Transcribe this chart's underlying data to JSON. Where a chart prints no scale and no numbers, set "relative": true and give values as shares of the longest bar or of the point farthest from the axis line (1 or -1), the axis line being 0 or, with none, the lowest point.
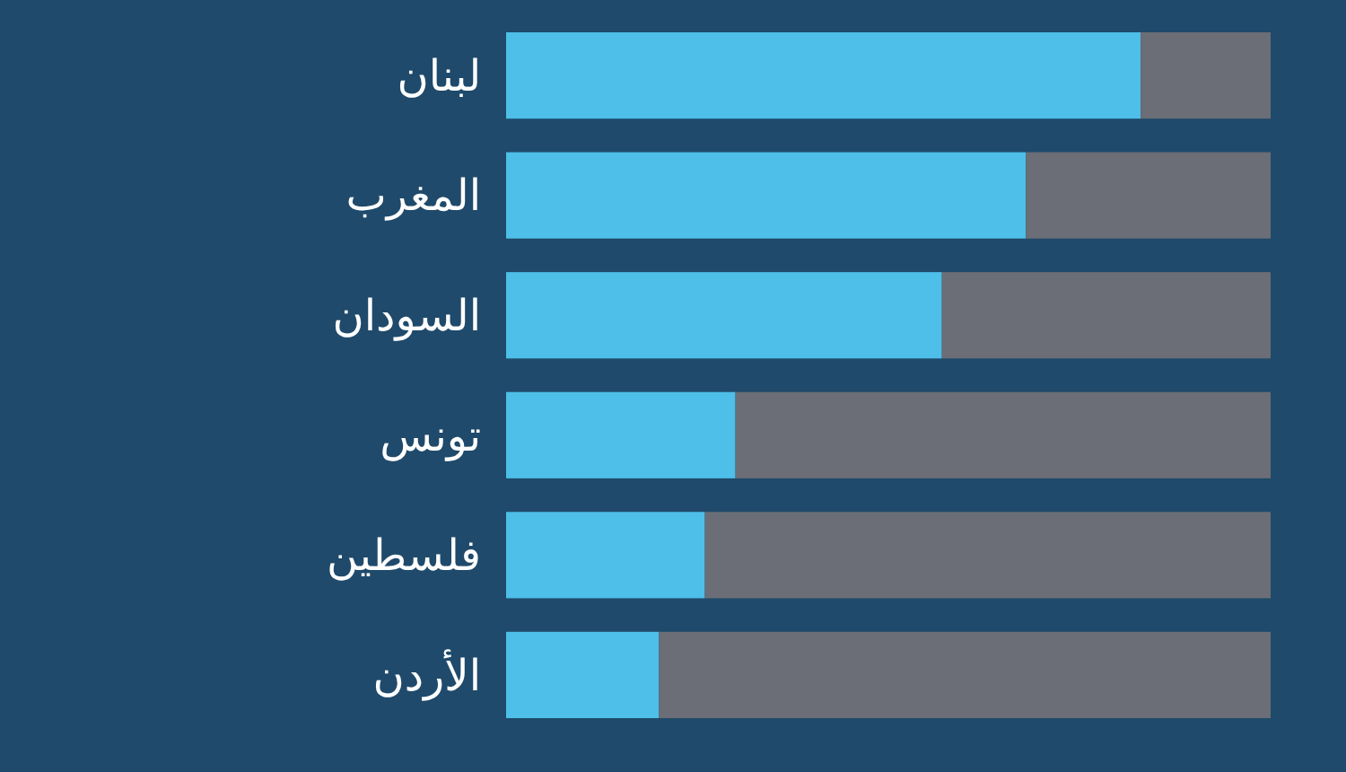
{
  "chart_data": {
    "type": "bar",
    "orientation": "horizontal",
    "stacked": true,
    "relative": true,
    "categories": [
      "لبنان",
      "المغرب",
      "السودان",
      "تونس",
      "فلسطين",
      "الأردن"
    ],
    "series": [
      {
        "color": "#4dbfe8",
        "values": [
          0.83,
          0.68,
          0.57,
          0.3,
          0.26,
          0.2
        ]
      },
      {
        "color": "#6b6e76",
        "values": [
          0.17,
          0.32,
          0.43,
          0.7,
          0.74,
          0.8
        ]
      }
    ]
  }
}
